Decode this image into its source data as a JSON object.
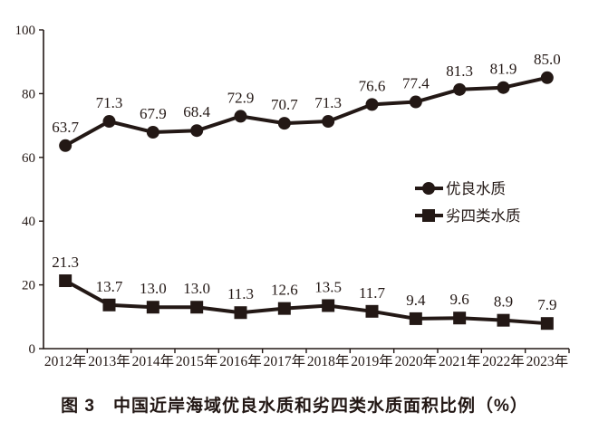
{
  "caption": "图 3　中国近岸海域优良水质和劣四类水质面积比例（%）",
  "colors": {
    "ink": "#231815",
    "background": "#ffffff"
  },
  "chart_data": {
    "type": "line",
    "title": "图 3　中国近岸海域优良水质和劣四类水质面积比例（%）",
    "xlabel": "",
    "ylabel": "",
    "categories": [
      "2012年",
      "2013年",
      "2014年",
      "2015年",
      "2016年",
      "2017年",
      "2018年",
      "2019年",
      "2020年",
      "2021年",
      "2022年",
      "2023年"
    ],
    "series": [
      {
        "name": "优良水质",
        "marker": "circle",
        "values": [
          63.7,
          71.3,
          67.9,
          68.4,
          72.9,
          70.7,
          71.3,
          76.6,
          77.4,
          81.3,
          81.9,
          85.0
        ]
      },
      {
        "name": "劣四类水质",
        "marker": "square",
        "values": [
          21.3,
          13.7,
          13.0,
          13.0,
          11.3,
          12.6,
          13.5,
          11.7,
          9.4,
          9.6,
          8.9,
          7.9
        ]
      }
    ],
    "ylim": [
      0,
      100
    ],
    "yticks": [
      0,
      20,
      40,
      60,
      80,
      100
    ],
    "grid": false,
    "data_labels": true,
    "data_label_decimals": 1,
    "legend_position": "middle-right",
    "line_color": "#231815"
  }
}
